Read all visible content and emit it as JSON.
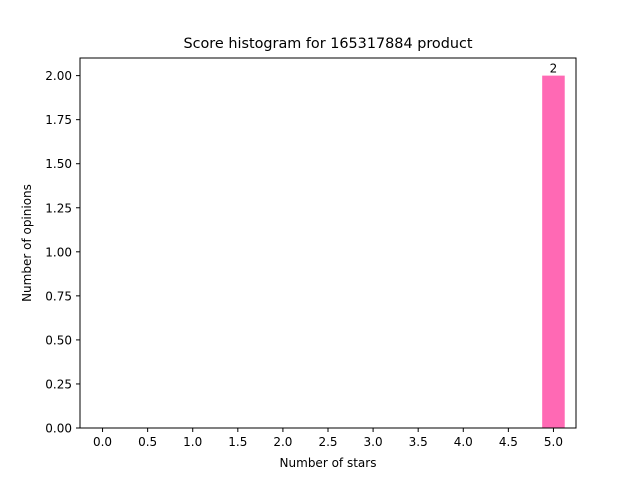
{
  "chart_data": {
    "type": "bar",
    "title": "Score histogram for 165317884 product",
    "xlabel": "Number of stars",
    "ylabel": "Number of opinions",
    "xlim": [
      -0.25,
      5.25
    ],
    "ylim": [
      0,
      2.1
    ],
    "x_ticks": [
      "0.0",
      "0.5",
      "1.0",
      "1.5",
      "2.0",
      "2.5",
      "3.0",
      "3.5",
      "4.0",
      "4.5",
      "5.0"
    ],
    "y_ticks": [
      "0.00",
      "0.25",
      "0.50",
      "0.75",
      "1.00",
      "1.25",
      "1.50",
      "1.75",
      "2.00"
    ],
    "bar_width": 0.25,
    "bars": [
      {
        "x": 5.0,
        "value": 2,
        "label": "2"
      }
    ],
    "colors": {
      "bar": "#ff69b4",
      "axes": "#000000",
      "background": "#ffffff"
    },
    "grid": false,
    "legend": "none"
  }
}
